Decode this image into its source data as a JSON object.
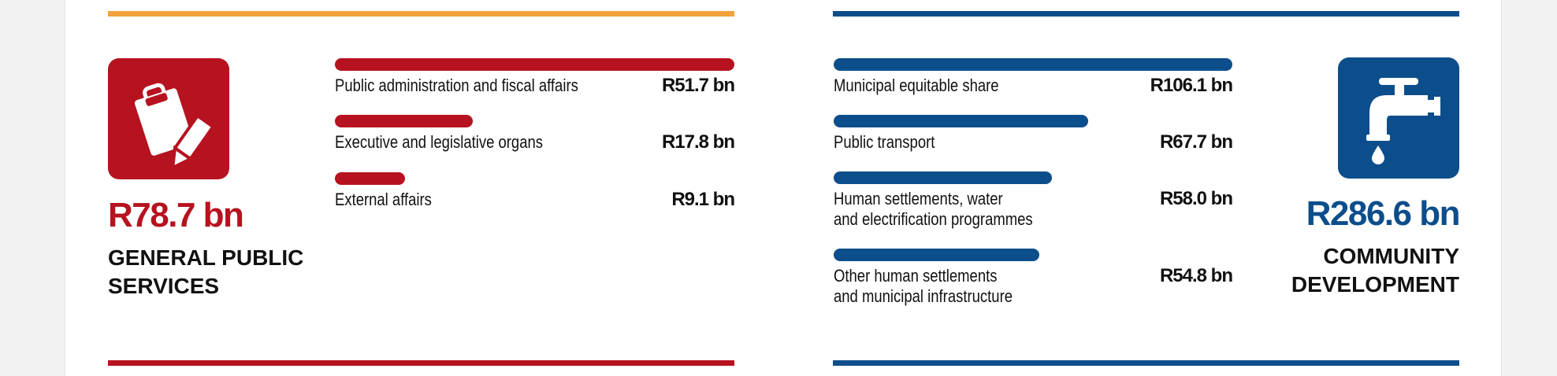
{
  "colors": {
    "left_rule_top": "#f0a23c",
    "left_accent": "#b7121f",
    "right_accent": "#0c4e8b",
    "text": "#111111"
  },
  "chart_data": [
    {
      "type": "bar",
      "orientation": "horizontal",
      "total": "R78.7 bn",
      "category_title": [
        "GENERAL PUBLIC",
        "SERVICES"
      ],
      "icon": "clipboard-pencil-icon",
      "categories": [
        "Public administration and fiscal affairs",
        "Executive and legislative organs",
        "External affairs"
      ],
      "value_labels": [
        "R51.7 bn",
        "R17.8 bn",
        "R9.1 bn"
      ],
      "values": [
        51.7,
        17.8,
        9.1
      ]
    },
    {
      "type": "bar",
      "orientation": "horizontal",
      "total": "R286.6 bn",
      "category_title": [
        "COMMUNITY",
        "DEVELOPMENT"
      ],
      "icon": "water-tap-icon",
      "categories": [
        "Municipal equitable share",
        "Public transport",
        "Human settlements, water\nand electrification programmes",
        "Other human settlements\nand municipal infrastructure"
      ],
      "value_labels": [
        "R106.1 bn",
        "R67.7 bn",
        "R58.0 bn",
        "R54.8 bn"
      ],
      "values": [
        106.1,
        67.7,
        58.0,
        54.8
      ]
    }
  ]
}
